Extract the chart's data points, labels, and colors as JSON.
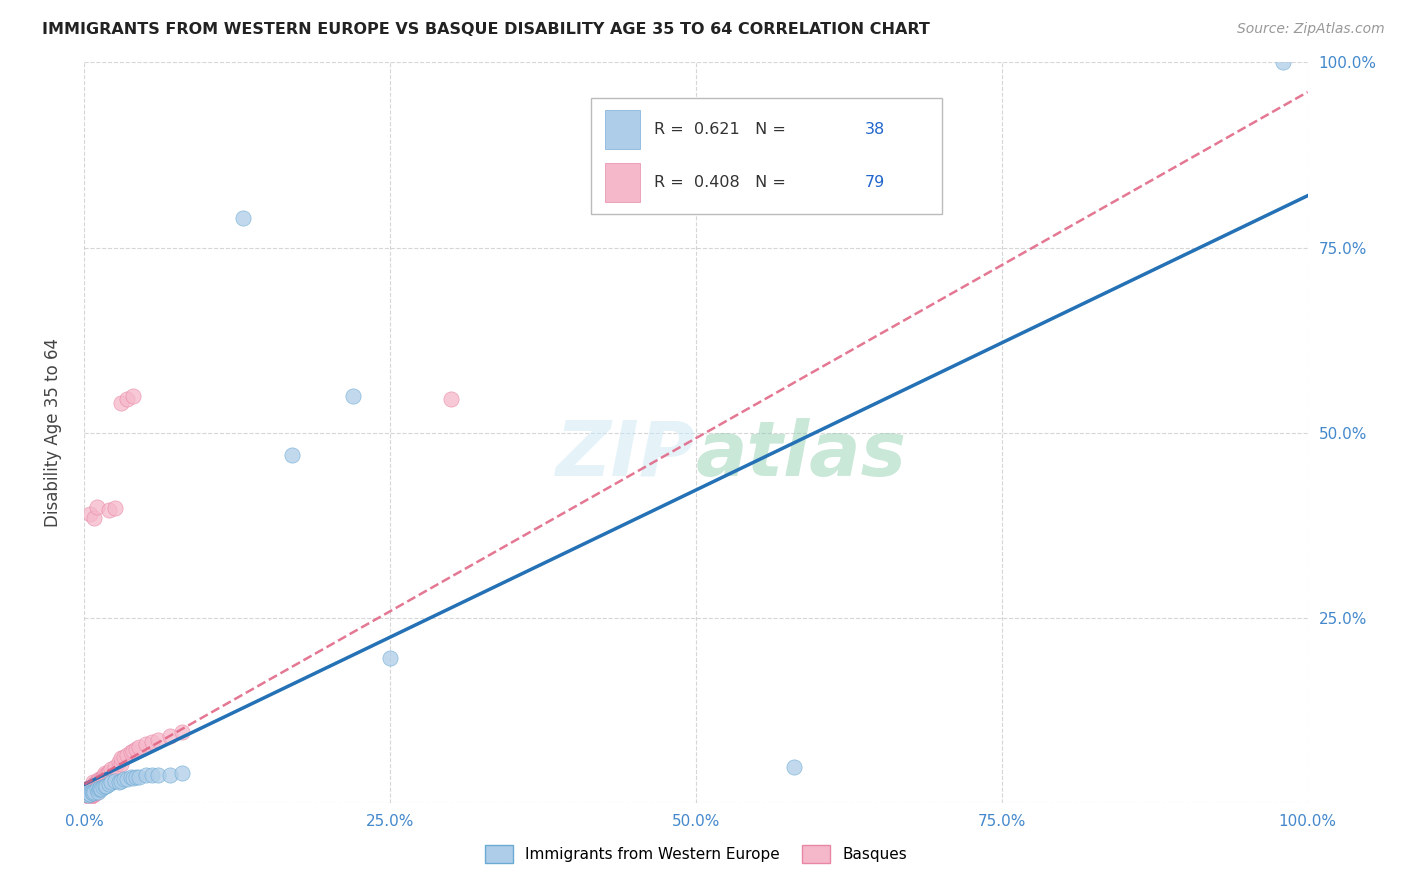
{
  "title": "IMMIGRANTS FROM WESTERN EUROPE VS BASQUE DISABILITY AGE 35 TO 64 CORRELATION CHART",
  "source": "Source: ZipAtlas.com",
  "ylabel": "Disability Age 35 to 64",
  "watermark": "ZIPAtlas",
  "blue_scatter_x": [
    0.001,
    0.002,
    0.003,
    0.004,
    0.005,
    0.006,
    0.007,
    0.008,
    0.01,
    0.011,
    0.012,
    0.013,
    0.014,
    0.015,
    0.017,
    0.018,
    0.02,
    0.022,
    0.025,
    0.028,
    0.03,
    0.032,
    0.035,
    0.038,
    0.04,
    0.042,
    0.045,
    0.05,
    0.055,
    0.06,
    0.07,
    0.08,
    0.13,
    0.17,
    0.22,
    0.25,
    0.58,
    0.98
  ],
  "blue_scatter_y": [
    0.012,
    0.015,
    0.01,
    0.013,
    0.012,
    0.015,
    0.013,
    0.015,
    0.018,
    0.015,
    0.018,
    0.02,
    0.018,
    0.022,
    0.023,
    0.023,
    0.025,
    0.028,
    0.03,
    0.028,
    0.03,
    0.032,
    0.032,
    0.035,
    0.033,
    0.035,
    0.035,
    0.038,
    0.038,
    0.038,
    0.038,
    0.04,
    0.79,
    0.47,
    0.55,
    0.195,
    0.048,
    1.0
  ],
  "pink_scatter_x": [
    0.001,
    0.001,
    0.001,
    0.002,
    0.002,
    0.002,
    0.003,
    0.003,
    0.003,
    0.003,
    0.004,
    0.004,
    0.004,
    0.004,
    0.005,
    0.005,
    0.005,
    0.005,
    0.005,
    0.005,
    0.006,
    0.006,
    0.006,
    0.006,
    0.007,
    0.007,
    0.007,
    0.007,
    0.007,
    0.007,
    0.008,
    0.008,
    0.008,
    0.008,
    0.009,
    0.009,
    0.01,
    0.01,
    0.01,
    0.01,
    0.011,
    0.011,
    0.012,
    0.012,
    0.013,
    0.014,
    0.015,
    0.015,
    0.016,
    0.017,
    0.018,
    0.019,
    0.02,
    0.022,
    0.022,
    0.025,
    0.028,
    0.03,
    0.03,
    0.032,
    0.035,
    0.038,
    0.04,
    0.042,
    0.045,
    0.05,
    0.055,
    0.06,
    0.07,
    0.08,
    0.005,
    0.008,
    0.01,
    0.02,
    0.025,
    0.03,
    0.035,
    0.04,
    0.3
  ],
  "pink_scatter_y": [
    0.01,
    0.012,
    0.015,
    0.01,
    0.013,
    0.018,
    0.01,
    0.012,
    0.015,
    0.02,
    0.01,
    0.012,
    0.015,
    0.018,
    0.008,
    0.01,
    0.012,
    0.015,
    0.018,
    0.022,
    0.01,
    0.012,
    0.018,
    0.022,
    0.01,
    0.012,
    0.015,
    0.018,
    0.022,
    0.028,
    0.012,
    0.015,
    0.02,
    0.025,
    0.018,
    0.025,
    0.015,
    0.02,
    0.025,
    0.03,
    0.022,
    0.03,
    0.025,
    0.032,
    0.03,
    0.032,
    0.028,
    0.035,
    0.038,
    0.04,
    0.038,
    0.04,
    0.042,
    0.038,
    0.045,
    0.048,
    0.055,
    0.052,
    0.06,
    0.062,
    0.065,
    0.068,
    0.07,
    0.072,
    0.075,
    0.08,
    0.082,
    0.085,
    0.09,
    0.095,
    0.39,
    0.385,
    0.4,
    0.395,
    0.398,
    0.54,
    0.545,
    0.55,
    0.545
  ],
  "blue_line": [
    [
      0.0,
      0.025
    ],
    [
      1.0,
      0.82
    ]
  ],
  "pink_line": [
    [
      0.0,
      0.025
    ],
    [
      1.0,
      0.96
    ]
  ],
  "legend_items": [
    {
      "color": "#aecde8",
      "text_black": "R =  0.621   N = ",
      "text_blue": "38"
    },
    {
      "color": "#f5b8ca",
      "text_black": "R =  0.408   N = ",
      "text_blue": "79"
    }
  ],
  "bottom_legend": [
    "Immigrants from Western Europe",
    "Basques"
  ],
  "bottom_colors": [
    "#aecde8",
    "#f5b8ca"
  ],
  "scatter_size": 120,
  "scatter_alpha": 0.75,
  "blue_dot_color": "#aecde8",
  "blue_edge_color": "#6aaad4",
  "pink_dot_color": "#f5b8ca",
  "pink_edge_color": "#e887a5",
  "blue_line_color": "#2471b5",
  "pink_line_color": "#e06080",
  "grid_color": "#cccccc",
  "tick_label_color": "#4488cc",
  "ylabel_color": "#444444",
  "title_color": "#222222",
  "source_color": "#999999",
  "watermark_color": "#cce8f5"
}
